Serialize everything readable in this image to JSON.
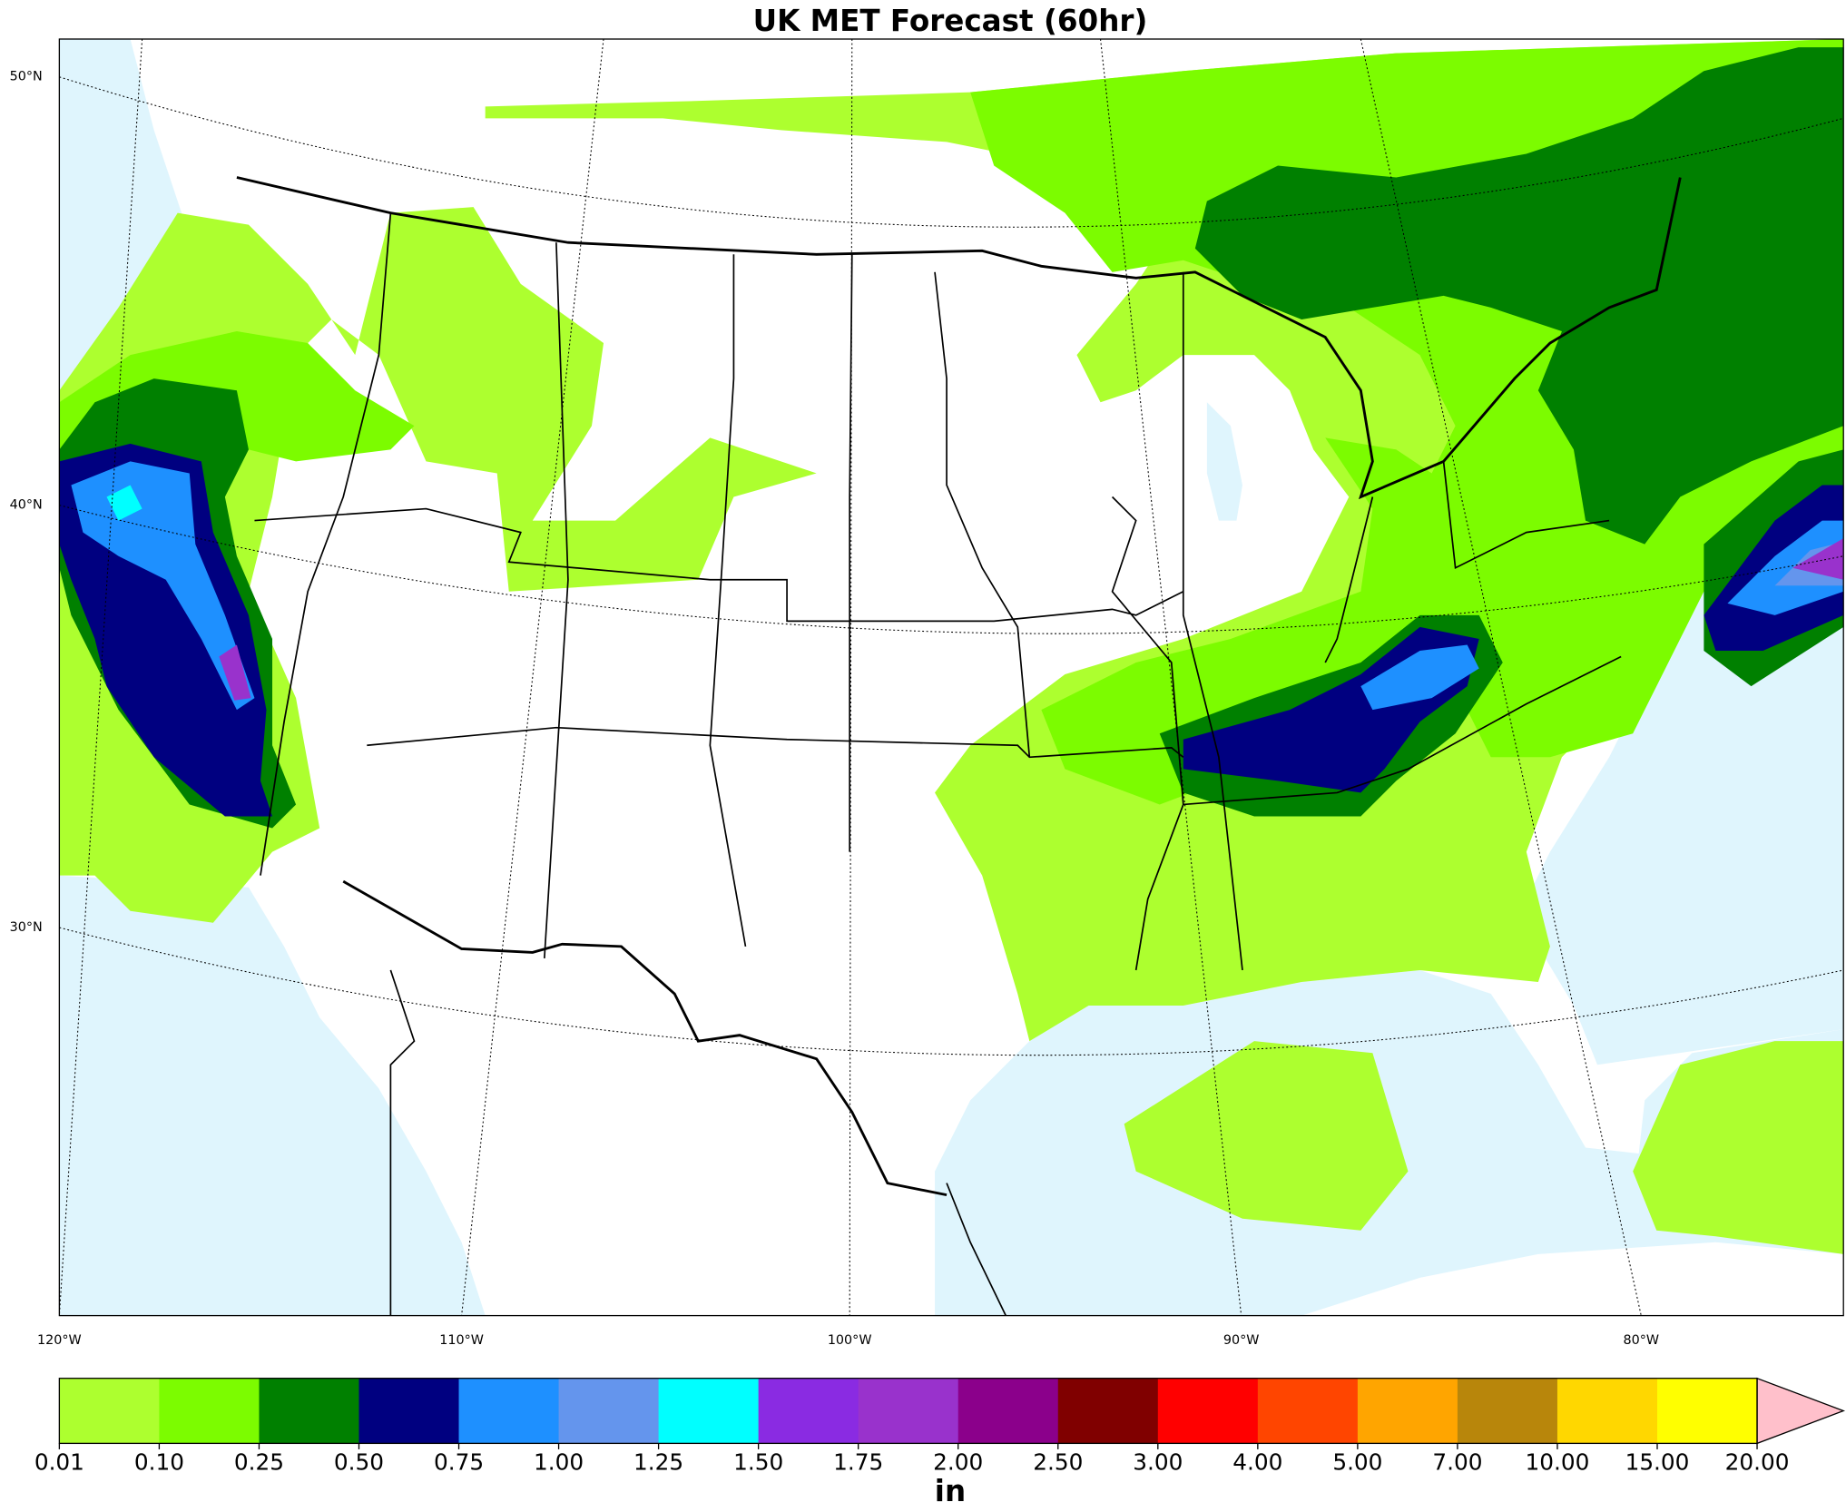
{
  "title": "UK MET Forecast (60hr)",
  "lat_labels": [
    "50°N",
    "40°N",
    "30°N"
  ],
  "lon_labels": [
    "120°W",
    "110°W",
    "100°W",
    "90°W",
    "80°W"
  ],
  "colorbar": {
    "label": "in",
    "ticks": [
      {
        "value": 0.01,
        "label": "0.01"
      },
      {
        "value": 0.1,
        "label": "0.10"
      },
      {
        "value": 0.25,
        "label": "0.25"
      },
      {
        "value": 0.5,
        "label": "0.50"
      },
      {
        "value": 0.75,
        "label": "0.75"
      },
      {
        "value": 1,
        "label": "1.00"
      },
      {
        "value": 1.25,
        "label": "1.25"
      },
      {
        "value": 1.5,
        "label": "1.50"
      },
      {
        "value": 1.75,
        "label": "1.75"
      },
      {
        "value": 2,
        "label": "2.00"
      },
      {
        "value": 2.5,
        "label": "2.50"
      },
      {
        "value": 3,
        "label": "3.00"
      },
      {
        "value": 4,
        "label": "4.00"
      },
      {
        "value": 5,
        "label": "5.00"
      },
      {
        "value": 7,
        "label": "7.00"
      },
      {
        "value": 10,
        "label": "10.00"
      },
      {
        "value": 15,
        "label": "15.00"
      },
      {
        "value": 20,
        "label": "20.00"
      }
    ],
    "colors": [
      "#adff2f",
      "#7cfc00",
      "#008000",
      "#000080",
      "#1e90ff",
      "#6495ed",
      "#00ffff",
      "#8a2be2",
      "#9932cc",
      "#8b008b",
      "#800000",
      "#ff0000",
      "#ff4500",
      "#ffa500",
      "#b8860b",
      "#ffd700",
      "#ffff00"
    ],
    "extend_color": "#ffc0cb"
  }
}
